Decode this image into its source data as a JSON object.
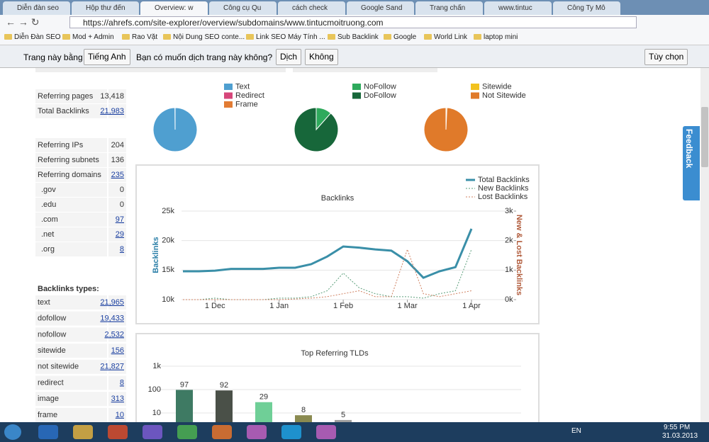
{
  "browser": {
    "tabs": [
      "Diễn đàn seo",
      "Hộp thư đến",
      "Overview: w",
      "Công cụ Qu",
      "cách check",
      "Google Sand",
      "Trang chấn",
      "www.tintuc",
      "Công Ty Mô"
    ],
    "active_tab": 2,
    "url": "https://ahrefs.com/site-explorer/overview/subdomains/www.tintucmoitruong.com",
    "bookmarks": [
      "Diễn Đàn SEO",
      "Mod + Admin",
      "Rao Vặt",
      "Nội Dung SEO conte...",
      "Link SEO Máy Tính ...",
      "Sub Backlink",
      "Google",
      "World Link",
      "laptop mini"
    ]
  },
  "translate_bar": {
    "prefix": "Trang này bằng",
    "language": "Tiếng Anh",
    "question": "Bạn có muốn dịch trang này không?",
    "translate": "Dịch",
    "decline": "Không",
    "options": "Tùy chọn"
  },
  "sidebar": {
    "groups": [
      [
        {
          "label": "Referring pages",
          "value": "13,418",
          "link": false
        },
        {
          "label": "Total Backlinks",
          "value": "21,983",
          "link": true
        }
      ],
      [
        {
          "label": "Referring IPs",
          "value": "204",
          "link": false
        },
        {
          "label": "Referring subnets",
          "value": "136",
          "link": false
        },
        {
          "label": "Referring domains",
          "value": "235",
          "link": true
        },
        {
          "label": ".gov",
          "value": "0",
          "link": false
        },
        {
          "label": ".edu",
          "value": "0",
          "link": false
        },
        {
          "label": ".com",
          "value": "97",
          "link": true
        },
        {
          "label": ".net",
          "value": "29",
          "link": true
        },
        {
          "label": ".org",
          "value": "8",
          "link": true
        }
      ]
    ],
    "types_title": "Backlinks types:",
    "types": [
      {
        "label": "text",
        "value": "21,965",
        "link": true
      },
      {
        "label": "dofollow",
        "value": "19,433",
        "link": true
      },
      {
        "label": "nofollow",
        "value": "2,532",
        "link": true
      },
      {
        "label": "sitewide",
        "value": "156",
        "link": true
      },
      {
        "label": "not sitewide",
        "value": "21,827",
        "link": true
      },
      {
        "label": "redirect",
        "value": "8",
        "link": true
      },
      {
        "label": "image",
        "value": "313",
        "link": true
      },
      {
        "label": "frame",
        "value": "10",
        "link": true
      }
    ]
  },
  "feedback": "Feedback",
  "taskbar": {
    "language": "EN",
    "time": "9:55 PM",
    "date": "31.03.2013"
  },
  "chart_data": [
    {
      "type": "pie",
      "categories": [
        "Text",
        "Redirect",
        "Frame"
      ],
      "values": [
        21965,
        8,
        10
      ],
      "colors": [
        "#4f9fd0",
        "#d6467a",
        "#e27c34"
      ]
    },
    {
      "type": "pie",
      "categories": [
        "NoFollow",
        "DoFollow"
      ],
      "values": [
        2532,
        19433
      ],
      "colors": [
        "#2eaa5c",
        "#17673a"
      ]
    },
    {
      "type": "pie",
      "categories": [
        "Sitewide",
        "Not Sitewide"
      ],
      "values": [
        156,
        21827
      ],
      "colors": [
        "#f2c21e",
        "#e07a2a"
      ]
    },
    {
      "type": "line",
      "title": "Backlinks",
      "ylabel": "Backlinks",
      "y2label": "New & Lost Backlinks",
      "legend": "top-right",
      "categories": [
        null,
        null,
        "1 Dec",
        null,
        null,
        null,
        "1 Jan",
        null,
        null,
        null,
        "1 Feb",
        null,
        null,
        null,
        "1 Mar",
        null,
        null,
        null,
        "1 Apr"
      ],
      "series": [
        {
          "name": "Total Backlinks",
          "color": "#3a8fa8",
          "style": "solid",
          "values": [
            14800,
            14800,
            14900,
            15200,
            15200,
            15200,
            15400,
            15400,
            16000,
            17300,
            19000,
            18800,
            18500,
            18300,
            16500,
            13700,
            14800,
            15500,
            22000
          ]
        },
        {
          "name": "New Backlinks",
          "color": "#5a9e7a",
          "style": "dashed",
          "axis": "y2",
          "values": [
            0,
            0,
            50,
            0,
            0,
            0,
            50,
            50,
            100,
            300,
            900,
            400,
            200,
            100,
            100,
            50,
            200,
            300,
            1700
          ]
        },
        {
          "name": "Lost Backlinks",
          "color": "#d08060",
          "style": "dashed",
          "axis": "y2",
          "values": [
            0,
            0,
            0,
            0,
            0,
            0,
            0,
            20,
            50,
            100,
            200,
            300,
            100,
            100,
            1700,
            200,
            100,
            200,
            300
          ]
        }
      ],
      "ylim": [
        10000,
        25000
      ],
      "yticks": [
        {
          "value": 10000,
          "label": "10k"
        },
        {
          "value": 15000,
          "label": "15k"
        },
        {
          "value": 20000,
          "label": "20k"
        },
        {
          "value": 25000,
          "label": "25k"
        }
      ],
      "y2lim": [
        0,
        3000
      ],
      "y2ticks": [
        {
          "value": 0,
          "label": "0k"
        },
        {
          "value": 1000,
          "label": "1k"
        },
        {
          "value": 2000,
          "label": "2k"
        },
        {
          "value": 3000,
          "label": "3k"
        }
      ]
    },
    {
      "type": "bar",
      "title": "Top Referring TLDs",
      "categories": [
        null,
        null,
        null,
        null,
        null
      ],
      "values": [
        97,
        92,
        29,
        8,
        5
      ],
      "colors": [
        "#3e7a63",
        "#4a5048",
        "#6fcf97",
        "#8a8a50",
        "#9e9e9e"
      ],
      "log_scale": true,
      "grid": true,
      "ylim": [
        1,
        1000
      ],
      "yticks": [
        10,
        100,
        {
          "value": 1000,
          "label": "1k"
        }
      ]
    }
  ]
}
